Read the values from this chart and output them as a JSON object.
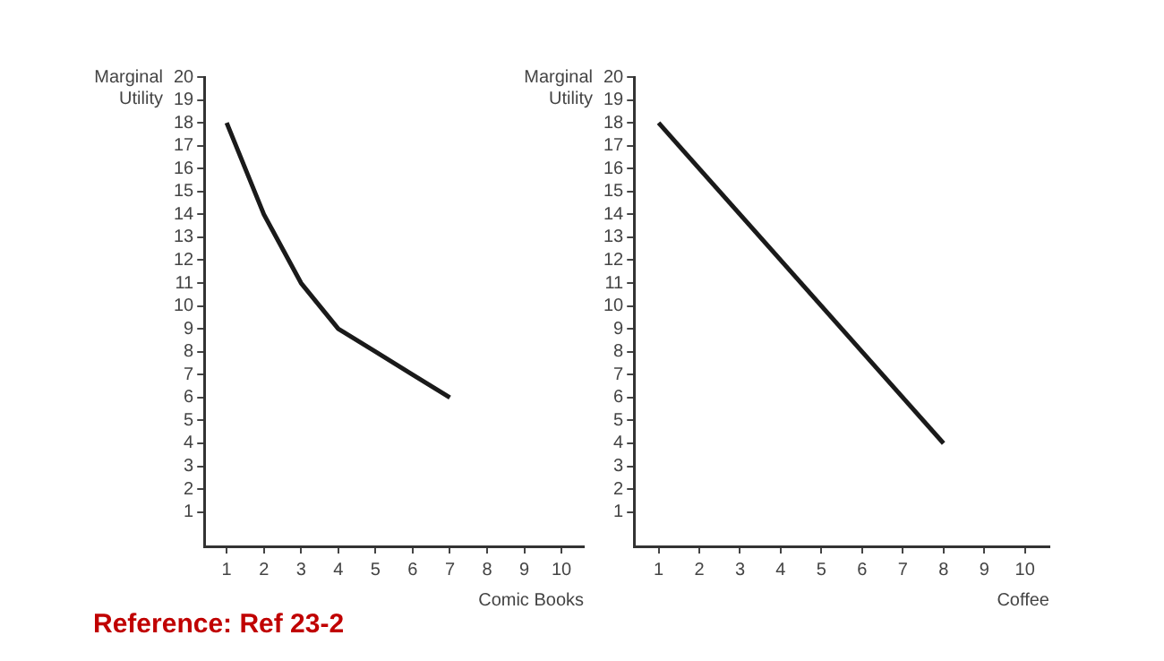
{
  "chart_data": [
    {
      "type": "line",
      "ylabel": "Marginal Utility",
      "xlabel": "Comic Books",
      "x": [
        1,
        2,
        3,
        4,
        5,
        6,
        7
      ],
      "values": [
        18,
        14,
        11,
        9,
        8,
        7,
        6
      ],
      "color": "#1a1a1a",
      "xlim": [
        0.4,
        10.6
      ],
      "xticks": [
        1,
        2,
        3,
        4,
        5,
        6,
        7,
        8,
        9,
        10
      ],
      "ylim": [
        -0.5,
        20
      ],
      "yticks": [
        1,
        2,
        3,
        4,
        5,
        6,
        7,
        8,
        9,
        10,
        11,
        12,
        13,
        14,
        15,
        16,
        17,
        18,
        19,
        20
      ],
      "grid": false,
      "legend": false,
      "marker": "none",
      "annotations": [
        "Reference: Ref 23-2"
      ]
    },
    {
      "type": "line",
      "ylabel": "Marginal Utility",
      "xlabel": "Coffee",
      "x": [
        1,
        8
      ],
      "values": [
        18,
        4
      ],
      "color": "#1a1a1a",
      "xlim": [
        0.4,
        10.6
      ],
      "xticks": [
        1,
        2,
        3,
        4,
        5,
        6,
        7,
        8,
        9,
        10
      ],
      "ylim": [
        -0.5,
        20
      ],
      "yticks": [
        1,
        2,
        3,
        4,
        5,
        6,
        7,
        8,
        9,
        10,
        11,
        12,
        13,
        14,
        15,
        16,
        17,
        18,
        19,
        20
      ],
      "grid": false,
      "legend": false,
      "marker": "none"
    }
  ]
}
